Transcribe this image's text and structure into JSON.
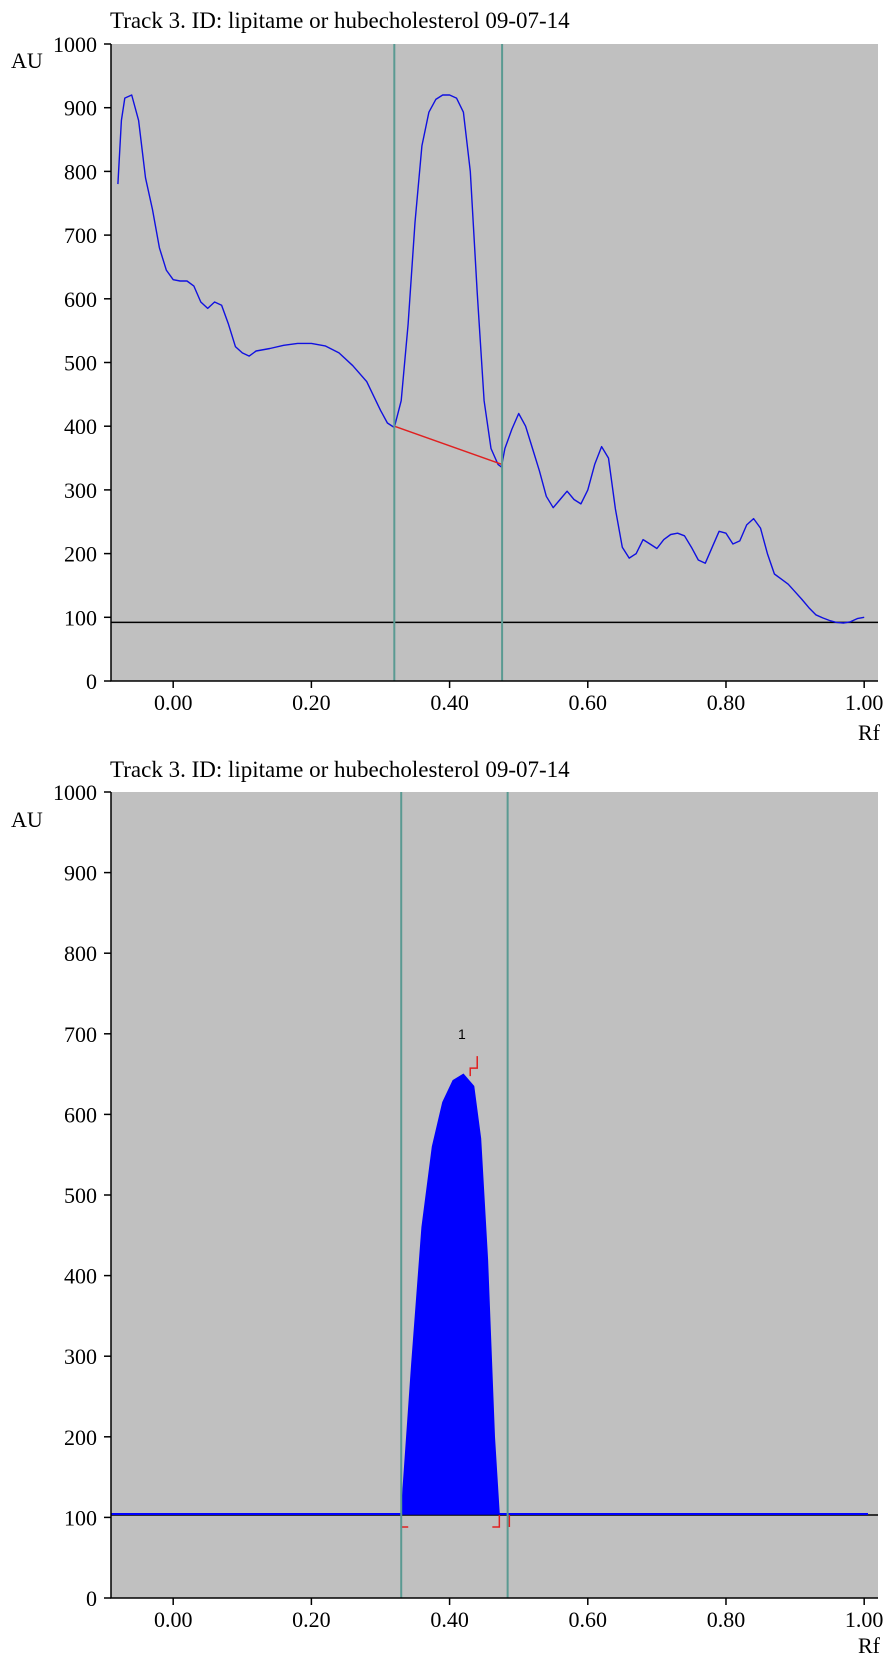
{
  "chart_data": [
    {
      "type": "line",
      "title": "Track 3. ID: lipitame or hubecholesterol 09-07-14",
      "ylabel": "AU",
      "xlabel": "Rf",
      "xlim": [
        -0.09,
        1.02
      ],
      "ylim": [
        0,
        1000
      ],
      "x_ticks": [
        "0.00",
        "0.20",
        "0.40",
        "0.60",
        "0.80",
        "1.00"
      ],
      "y_ticks": [
        "0",
        "100",
        "200",
        "300",
        "400",
        "500",
        "600",
        "700",
        "800",
        "900",
        "1000"
      ],
      "grid": false,
      "background": "#c0c0c0",
      "colors": {
        "trace": "#1010e0",
        "baseline": "#000000",
        "markers": "#5a9a92",
        "integration": "#e02020"
      },
      "series": [
        {
          "x": [
            -0.08,
            -0.075,
            -0.07,
            -0.06,
            -0.05,
            -0.04,
            -0.03,
            -0.02,
            -0.01,
            0.0,
            0.01,
            0.02,
            0.03,
            0.04,
            0.05,
            0.06,
            0.07,
            0.08,
            0.09,
            0.1,
            0.11,
            0.12,
            0.14,
            0.16,
            0.18,
            0.2,
            0.22,
            0.24,
            0.26,
            0.28,
            0.3,
            0.31,
            0.32,
            0.33,
            0.34,
            0.35,
            0.36,
            0.37,
            0.38,
            0.39,
            0.4,
            0.41,
            0.42,
            0.43,
            0.44,
            0.45,
            0.46,
            0.47,
            0.475,
            0.48,
            0.49,
            0.5,
            0.51,
            0.52,
            0.53,
            0.54,
            0.55,
            0.56,
            0.57,
            0.58,
            0.59,
            0.6,
            0.61,
            0.62,
            0.63,
            0.64,
            0.65,
            0.66,
            0.67,
            0.68,
            0.69,
            0.7,
            0.71,
            0.72,
            0.73,
            0.74,
            0.75,
            0.76,
            0.77,
            0.78,
            0.79,
            0.8,
            0.81,
            0.82,
            0.83,
            0.84,
            0.85,
            0.86,
            0.87,
            0.88,
            0.89,
            0.9,
            0.91,
            0.92,
            0.93,
            0.94,
            0.95,
            0.96,
            0.97,
            0.98,
            0.99,
            1.0
          ],
          "y": [
            780,
            880,
            915,
            920,
            880,
            790,
            740,
            680,
            645,
            630,
            628,
            628,
            620,
            595,
            585,
            595,
            590,
            560,
            525,
            515,
            510,
            518,
            522,
            527,
            530,
            530,
            526,
            515,
            495,
            470,
            425,
            405,
            398,
            440,
            560,
            720,
            840,
            893,
            913,
            920,
            920,
            915,
            893,
            800,
            610,
            440,
            365,
            340,
            336,
            365,
            395,
            420,
            400,
            365,
            330,
            290,
            272,
            285,
            298,
            285,
            278,
            300,
            340,
            368,
            350,
            270,
            210,
            193,
            200,
            222,
            215,
            208,
            222,
            230,
            232,
            228,
            210,
            190,
            185,
            210,
            235,
            232,
            215,
            220,
            245,
            255,
            240,
            200,
            168,
            160,
            152,
            140,
            128,
            115,
            104,
            99,
            95,
            92,
            91,
            93,
            98,
            100
          ]
        }
      ],
      "baseline_y": 92,
      "vertical_markers": [
        0.32,
        0.476
      ],
      "integration_baseline": {
        "x": [
          0.32,
          0.476
        ],
        "y": [
          400,
          340
        ]
      }
    },
    {
      "type": "area",
      "title": "Track 3. ID: lipitame or hubecholesterol 09-07-14",
      "ylabel": "AU",
      "xlabel": "Rf",
      "xlim": [
        -0.09,
        1.02
      ],
      "ylim": [
        0,
        1000
      ],
      "x_ticks": [
        "0.00",
        "0.20",
        "0.40",
        "0.60",
        "0.80",
        "1.00"
      ],
      "y_ticks": [
        "0",
        "100",
        "200",
        "300",
        "400",
        "500",
        "600",
        "700",
        "800",
        "900",
        "1000"
      ],
      "grid": false,
      "background": "#c0c0c0",
      "colors": {
        "trace": "#0000ff",
        "baseline": "#000000",
        "markers": "#5a9a92",
        "integration": "#e02020"
      },
      "series": [
        {
          "x": [
            0.33,
            0.345,
            0.36,
            0.375,
            0.39,
            0.405,
            0.42,
            0.435,
            0.445,
            0.455,
            0.465,
            0.472
          ],
          "y": [
            104,
            290,
            460,
            560,
            615,
            642,
            650,
            635,
            570,
            420,
            200,
            104
          ]
        }
      ],
      "baseline_y": 103,
      "vertical_markers": [
        0.33,
        0.484
      ],
      "peak_label": {
        "text": "1",
        "x": 0.425,
        "y": 650
      }
    }
  ]
}
